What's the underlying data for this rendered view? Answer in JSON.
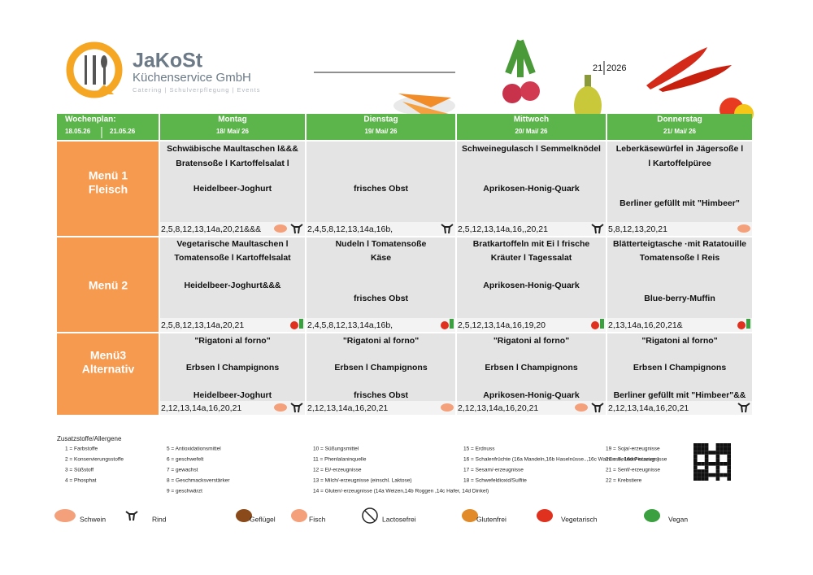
{
  "header": {
    "brand": "JaKoSt",
    "company": "Küchenservice GmbH",
    "tagline": "Catering | Schulverpflegung | Events",
    "week": "21",
    "year": "2026"
  },
  "table": {
    "plan_label": "Wochenplan:",
    "date_from": "18.05.26",
    "date_to": "21.05.26",
    "days": [
      {
        "name": "Montag",
        "date": "18/ Mai/ 26"
      },
      {
        "name": "Dienstag",
        "date": "19/ Mai/ 26"
      },
      {
        "name": "Mittwoch",
        "date": "20/ Mai/ 26"
      },
      {
        "name": "Donnerstag",
        "date": "21/ Mai/ 26"
      }
    ],
    "menus": [
      {
        "label": [
          "Menü 1",
          "Fleisch"
        ],
        "cells": [
          {
            "main": [
              "Schwäbische  Maultaschen  l&&&",
              "Bratensoße l Kartoffelsalat l"
            ],
            "dessert": "Heidelbeer-Joghurt",
            "allergens": "2,5,8,12,13,14a,20,21&&&"
          },
          {
            "dessert": "frisches Obst",
            "allergens": "2,4,5,8,12,13,14a,16b,"
          },
          {
            "main": [
              "Schweinegulasch l Semmelknödel"
            ],
            "dessert": "Aprikosen-Honig-Quark",
            "allergens": "2,5,12,13,14a,16,,20,21"
          },
          {
            "main": [
              "Leberkäsewürfel in Jägersoße l",
              "l Kartoffelpüree"
            ],
            "dessert": "Berliner gefüllt mit \"Himbeer\"",
            "allergens": "5,8,12,13,20,21"
          }
        ]
      },
      {
        "label": [
          "Menü 2"
        ],
        "cells": [
          {
            "main": [
              "Vegetarische Maultaschen l",
              "Tomatensoße l Kartoffelsalat"
            ],
            "dessert": "Heidelbeer-Joghurt&&&",
            "allergens": "2,5,8,12,13,14a,20,21"
          },
          {
            "main": [
              "Nudeln l Tomatensoße",
              "Käse"
            ],
            "dessert": "frisches Obst",
            "allergens": "2,4,5,8,12,13,14a,16b,"
          },
          {
            "main": [
              "Bratkartoffeln mit Ei l frische",
              "Kräuter l Tagessalat"
            ],
            "dessert": "Aprikosen-Honig-Quark",
            "allergens": "2,5,12,13,14a,16,19,20"
          },
          {
            "main": [
              "Blätterteigtasche ·mit Ratatouille",
              "Tomatensoße  l  Reis"
            ],
            "dessert": "Blue-berry-Muffin",
            "allergens": "2,13,14a,16,20,21&"
          }
        ]
      },
      {
        "label": [
          "Menü3",
          "Alternativ"
        ],
        "cells": [
          {
            "main": [
              "\"Rigatoni al forno\"",
              "Erbsen l Champignons"
            ],
            "dessert": "Heidelbeer-Joghurt",
            "allergens": "2,12,13,14a,16,20,21"
          },
          {
            "main": [
              "\"Rigatoni al forno\"",
              "Erbsen l Champignons"
            ],
            "dessert": "frisches Obst",
            "allergens": "2,12,13,14a,16,20,21"
          },
          {
            "main": [
              "\"Rigatoni al forno\"",
              "Erbsen l Champignons"
            ],
            "dessert": "Aprikosen-Honig-Quark",
            "allergens": "2,12,13,14a,16,20,21"
          },
          {
            "main": [
              "\"Rigatoni al forno\"",
              "Erbsen l Champignons"
            ],
            "dessert": "Berliner  gefüllt  mit  \"Himbeer\"&&",
            "allergens": "2,12,13,14a,16,20,21"
          }
        ]
      }
    ]
  },
  "legend": {
    "title": "Zusatzstoffe/Allergene",
    "columns": [
      [
        "1 = Farbstoffe",
        "2 = Konservierungsstoffe",
        "3 = Süßstoff",
        "4 = Phosphat"
      ],
      [
        "5 = Antioxidationsmittel",
        "6 = geschwefelt",
        "7 = gewachst",
        "8 = Geschmacksverstärker",
        "9 = geschwärzt"
      ],
      [
        "10 = Süßungsmittel",
        "11 = Phenlalaninquelle",
        "12 = Ei/-erzeugnisse",
        "13 = Milch/-erzeugnisse (einschl. Laktose)",
        "14 = Gluten/-erzeugnisse (14a Weizen,14b Roggen ,14c Hafer, 14d Dinkel)"
      ],
      [
        "15 = Erdnuss",
        "16 = Schalenfrüchte (16a Mandeln,16b Haselnüsse..,16c Walnüsse, 16d Pistazien.)",
        "17 = Sesam/-erzeugnisse",
        "18 = Schwefeldioxid/Sulfite"
      ],
      [
        "19 = Soja/-erzeugnisse",
        "20 = Sellerie/-erzeugnisse",
        "21 = Senf/-erzeugnisse",
        "22 = Krebstiere"
      ]
    ],
    "icons": [
      "Schwein",
      "Rind",
      "Geflügel",
      "Fisch",
      "Lactosefrei",
      "Glutenfrei",
      "Vegetarisch",
      "Vegan"
    ]
  }
}
